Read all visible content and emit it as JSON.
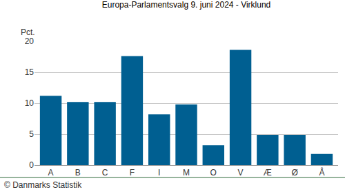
{
  "chart_data": {
    "type": "bar",
    "title": "Europa-Parlamentsvalg 9. juni 2024 - Virklund",
    "ylabel": "Pct.",
    "categories": [
      "A",
      "B",
      "C",
      "F",
      "I",
      "M",
      "O",
      "V",
      "Æ",
      "Ø",
      "Å"
    ],
    "values": [
      11.2,
      10.2,
      10.2,
      17.6,
      8.2,
      9.8,
      3.2,
      18.6,
      4.9,
      4.9,
      1.8
    ],
    "color": "#005f91",
    "ylim": [
      0,
      20
    ],
    "yticks": [
      0,
      5,
      10,
      15,
      20
    ],
    "grid": true,
    "annotations": [
      "© Danmarks Statistik"
    ]
  }
}
